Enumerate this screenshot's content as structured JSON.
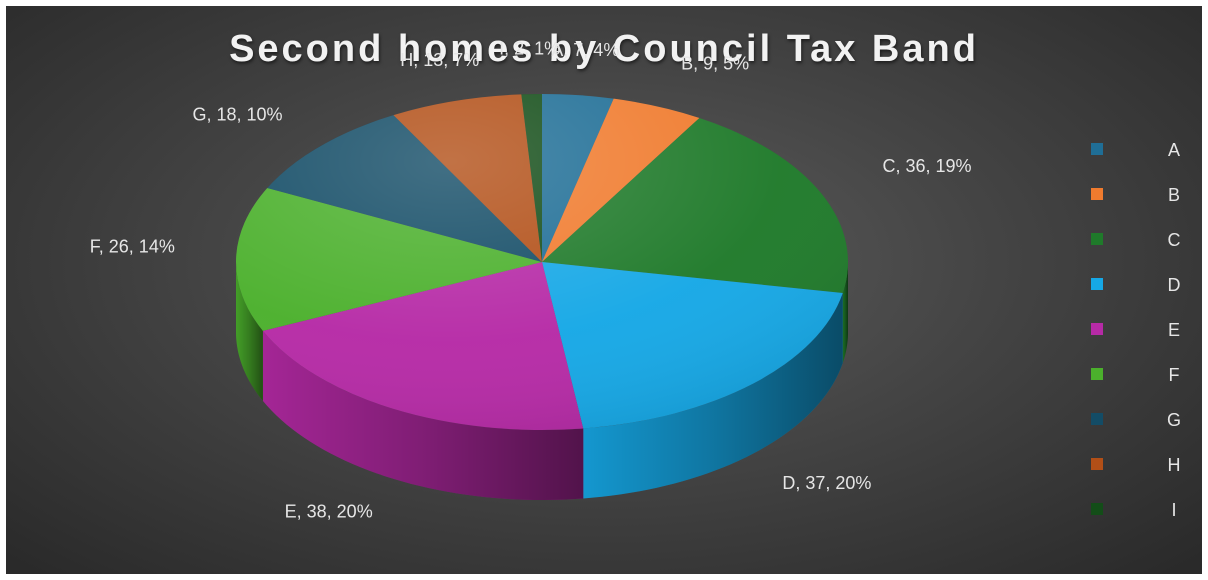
{
  "chart_data": {
    "type": "pie",
    "title": "Second homes by Council Tax Band",
    "categories": [
      "A",
      "B",
      "C",
      "D",
      "E",
      "F",
      "G",
      "H",
      "I"
    ],
    "values": [
      7,
      9,
      36,
      37,
      38,
      26,
      18,
      13,
      2
    ],
    "data_labels": [
      "A, 7, 4%",
      "B, 9, 5%",
      "C, 36, 19%",
      "D, 37, 20%",
      "E, 38, 20%",
      "F, 26, 14%",
      "G, 18, 10%",
      "H, 13, 7%",
      "I, 2, 1%"
    ],
    "colors": [
      "#1f6e96",
      "#f07b2e",
      "#1f7a2a",
      "#16a8e6",
      "#b62aa6",
      "#4bb02c",
      "#134c66",
      "#b24f17",
      "#134d18"
    ],
    "legend_position": "right",
    "style": "3d"
  }
}
